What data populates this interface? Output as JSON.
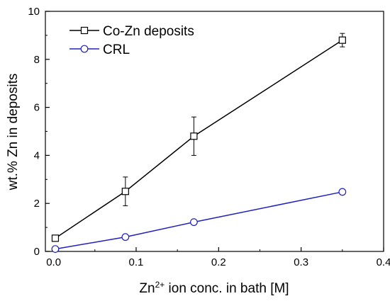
{
  "chart_data": {
    "type": "line",
    "xlabel": {
      "prefix": "Zn",
      "sup": "2+",
      "suffix": " ion conc. in bath [M]"
    },
    "ylabel": "wt.% Zn in deposits",
    "xlim": [
      -0.01,
      0.4
    ],
    "ylim": [
      0,
      10
    ],
    "xticks": [
      {
        "value": 0.0,
        "label": "0.0"
      },
      {
        "value": 0.1,
        "label": "0.1"
      },
      {
        "value": 0.2,
        "label": "0.2"
      },
      {
        "value": 0.3,
        "label": "0.3"
      },
      {
        "value": 0.4,
        "label": "0.4"
      }
    ],
    "yticks": [
      {
        "value": 0,
        "label": "0"
      },
      {
        "value": 2,
        "label": "2"
      },
      {
        "value": 4,
        "label": "4"
      },
      {
        "value": 6,
        "label": "6"
      },
      {
        "value": 8,
        "label": "8"
      },
      {
        "value": 10,
        "label": "10"
      }
    ],
    "grid": false,
    "legend": {
      "position": "top-left"
    },
    "series": [
      {
        "name": "Co-Zn deposits",
        "color": "#000000",
        "marker": "square",
        "x": [
          0.002,
          0.087,
          0.17,
          0.35
        ],
        "y": [
          0.55,
          2.5,
          4.8,
          8.8
        ],
        "err": [
          0.08,
          0.6,
          0.8,
          0.28
        ]
      },
      {
        "name": "CRL",
        "color": "#2020c0",
        "marker": "circle",
        "x": [
          0.002,
          0.087,
          0.17,
          0.35
        ],
        "y": [
          0.1,
          0.6,
          1.22,
          2.48
        ]
      }
    ]
  }
}
